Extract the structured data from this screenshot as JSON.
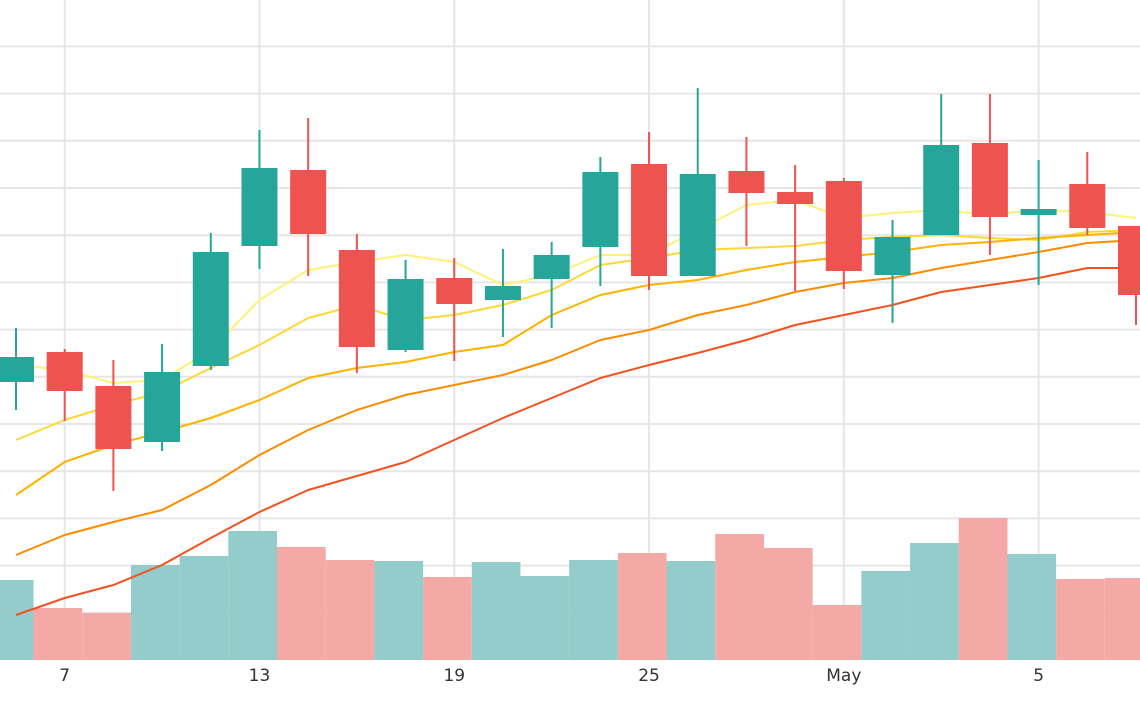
{
  "chart_data": {
    "type": "candlestick",
    "categories": [
      null,
      "7",
      null,
      null,
      null,
      "13",
      null,
      null,
      null,
      "19",
      null,
      null,
      null,
      "25",
      null,
      null,
      null,
      "May",
      null,
      null,
      null,
      "5",
      null,
      null
    ],
    "open": [
      27.8,
      30.8,
      27.4,
      21.8,
      29.4,
      41.4,
      49.0,
      41.0,
      31.0,
      38.2,
      36.0,
      38.1,
      41.3,
      49.6,
      38.4,
      48.9,
      46.8,
      47.9,
      38.5,
      42.5,
      51.7,
      44.5,
      47.6,
      43.4
    ],
    "high": [
      33.2,
      31.1,
      30.0,
      31.6,
      42.7,
      53.0,
      54.2,
      42.6,
      40.0,
      40.2,
      41.1,
      41.8,
      50.3,
      52.8,
      57.2,
      52.3,
      49.5,
      48.2,
      44.0,
      56.6,
      56.6,
      50.0,
      50.8,
      43.4
    ],
    "low": [
      25.0,
      23.9,
      16.9,
      20.9,
      29.0,
      39.1,
      38.4,
      28.7,
      30.8,
      29.9,
      32.3,
      33.2,
      37.4,
      37.0,
      38.4,
      41.4,
      36.9,
      37.1,
      33.7,
      42.5,
      40.5,
      37.5,
      42.5,
      33.5
    ],
    "close": [
      30.3,
      26.9,
      21.1,
      28.8,
      40.8,
      49.2,
      42.6,
      31.3,
      38.1,
      35.6,
      37.4,
      40.5,
      48.8,
      38.4,
      48.6,
      46.7,
      45.6,
      38.9,
      42.3,
      51.5,
      44.3,
      45.1,
      43.2,
      36.5
    ],
    "increasing_color": "#26a69a",
    "decreasing_color": "#ef5350",
    "volume": {
      "axis": "y2",
      "increasing_color": "#93cccb",
      "decreasing_color": "#f5a9a6",
      "values": [
        8.0,
        5.2,
        4.7,
        9.5,
        10.4,
        12.9,
        11.3,
        10.0,
        9.9,
        8.3,
        9.8,
        8.4,
        10.0,
        10.7,
        9.9,
        12.6,
        11.2,
        5.5,
        8.9,
        11.7,
        14.2,
        10.6,
        8.1,
        8.2
      ]
    },
    "series": [
      {
        "color": "#fff176",
        "values": [
          29.5,
          29.0,
          27.7,
          28.0,
          31.0,
          36.0,
          39.0,
          39.8,
          40.5,
          39.8,
          37.5,
          38.5,
          40.5,
          40.5,
          43.0,
          45.5,
          46.0,
          44.2,
          44.7,
          45.0,
          44.5,
          45.0,
          44.8,
          44.2
        ]
      },
      {
        "color": "#fdd835",
        "values": [
          22.0,
          24.0,
          25.5,
          26.8,
          29.2,
          31.5,
          34.2,
          35.5,
          34.0,
          34.5,
          35.5,
          37.0,
          39.5,
          40.2,
          41.0,
          41.2,
          41.4,
          42.0,
          42.3,
          42.5,
          42.2,
          42.0,
          42.8,
          43.0
        ]
      },
      {
        "color": "#ffb300",
        "values": [
          16.5,
          19.8,
          21.5,
          22.8,
          24.2,
          26.0,
          28.2,
          29.2,
          29.8,
          30.8,
          31.5,
          34.5,
          36.5,
          37.5,
          38.0,
          39.0,
          39.8,
          40.3,
          40.8,
          41.5,
          41.8,
          42.2,
          42.5,
          42.8
        ]
      },
      {
        "color": "#fb8c00",
        "values": [
          10.5,
          12.5,
          13.8,
          15.0,
          17.5,
          20.5,
          23.0,
          25.0,
          26.5,
          27.5,
          28.5,
          30.0,
          32.0,
          33.0,
          34.5,
          35.5,
          36.8,
          37.7,
          38.2,
          39.2,
          40.0,
          40.8,
          41.7,
          42.0
        ]
      },
      {
        "color": "#f4511e",
        "values": [
          4.5,
          6.2,
          7.5,
          9.5,
          12.2,
          14.8,
          17.0,
          18.4,
          19.8,
          22.0,
          24.2,
          26.2,
          28.2,
          29.5,
          30.7,
          32.0,
          33.5,
          34.5,
          35.5,
          36.8,
          37.5,
          38.2,
          39.2,
          39.2
        ]
      }
    ],
    "ylim": [
      0,
      66
    ],
    "yticks": [
      4.72,
      9.44,
      14.16,
      18.88,
      23.6,
      28.32,
      33.04,
      37.76,
      42.48,
      47.2,
      51.92,
      56.64,
      61.36
    ],
    "y2lim": [
      0,
      66
    ],
    "grid": true
  }
}
